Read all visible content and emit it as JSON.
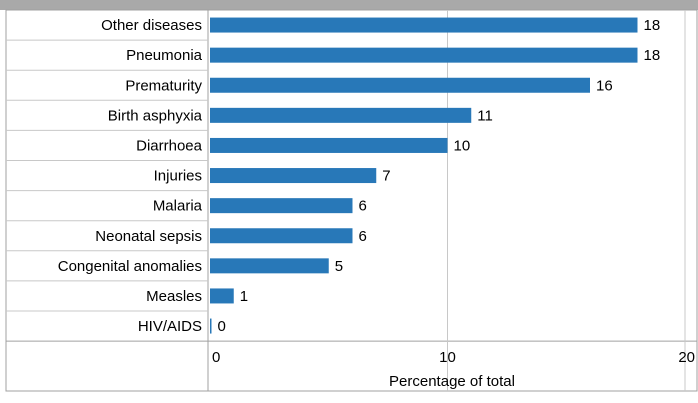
{
  "chart_data": {
    "type": "bar",
    "orientation": "horizontal",
    "categories": [
      "Other diseases",
      "Pneumonia",
      "Prematurity",
      "Birth asphyxia",
      "Diarrhoea",
      "Injuries",
      "Malaria",
      "Neonatal sepsis",
      "Congenital anomalies",
      "Measles",
      "HIV/AIDS"
    ],
    "values": [
      18,
      18,
      16,
      11,
      10,
      7,
      6,
      6,
      5,
      1,
      0
    ],
    "xlabel": "Percentage of total",
    "ylabel": "",
    "xlim": [
      0,
      20
    ],
    "xticks": [
      0,
      10,
      20
    ],
    "bar_color": "#2878b8",
    "grid": true,
    "data_labels": true
  }
}
